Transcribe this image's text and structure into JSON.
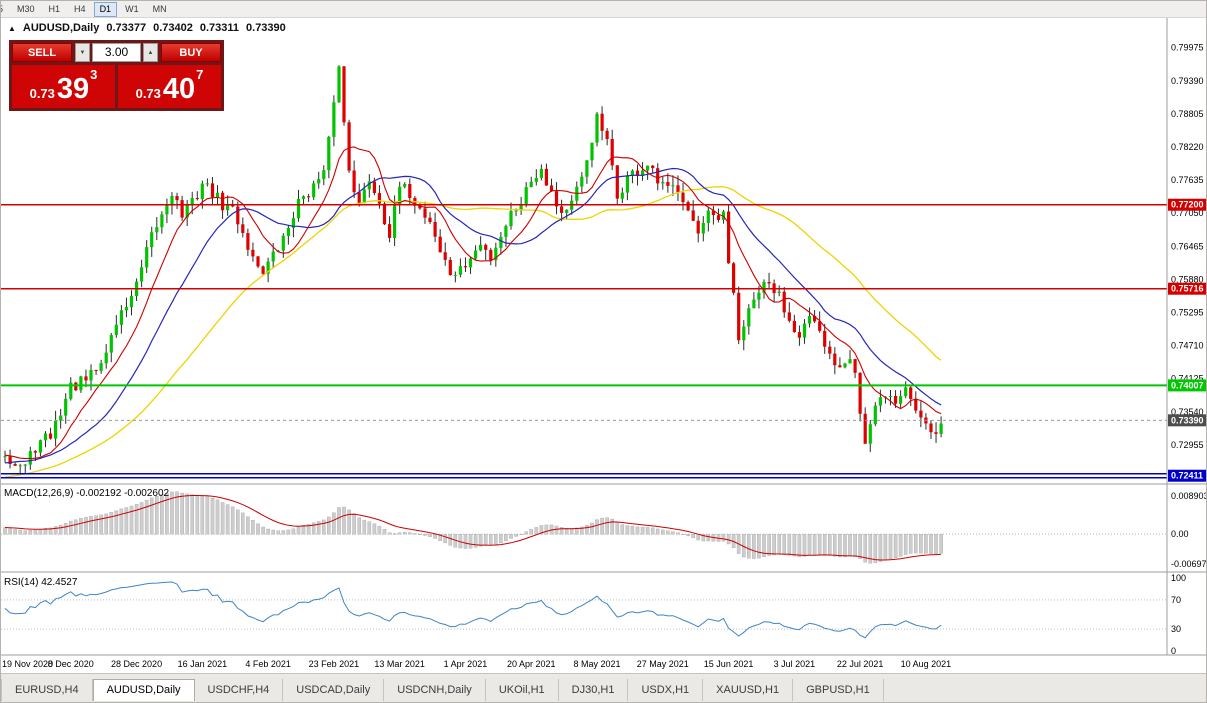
{
  "toolbar": {
    "timeframes": [
      {
        "label": "5",
        "clipped": true,
        "active": false
      },
      {
        "label": "M30",
        "active": false
      },
      {
        "label": "H1",
        "active": false
      },
      {
        "label": "H4",
        "active": false
      },
      {
        "label": "D1",
        "active": true
      },
      {
        "label": "W1",
        "active": false
      },
      {
        "label": "MN",
        "active": false
      }
    ]
  },
  "chart_header": {
    "collapse_icon": "▲",
    "symbol": "AUDUSD,Daily",
    "open": "0.73377",
    "high": "0.73402",
    "low": "0.73311",
    "close": "0.73390"
  },
  "trade_panel": {
    "sell_label": "SELL",
    "buy_label": "BUY",
    "volume": "3.00",
    "spinner_down": "▼",
    "spinner_up": "▲",
    "sell_price": {
      "prefix": "0.73",
      "big": "39",
      "sup": "3"
    },
    "buy_price": {
      "prefix": "0.73",
      "big": "40",
      "sup": "7"
    }
  },
  "tabs": {
    "active": "AUDUSD,Daily",
    "items": [
      "EURUSD,H4",
      "AUDUSD,Daily",
      "USDCHF,H4",
      "USDCAD,Daily",
      "USDCNH,Daily",
      "UKOil,H1",
      "DJ30,H1",
      "USDX,H1",
      "XAUUSD,H1",
      "GBPUSD,H1"
    ]
  },
  "chart_data": {
    "type": "candlestick",
    "symbol": "AUDUSD",
    "timeframe": "Daily",
    "price_axis": {
      "top": 0.805,
      "bottom": 0.723,
      "labels": [
        "0.79975",
        "0.79390",
        "0.78805",
        "0.78220",
        "0.77635",
        "0.77050",
        "0.76465",
        "0.75880",
        "0.75295",
        "0.74710",
        "0.74125",
        "0.73540",
        "0.72955"
      ]
    },
    "time_axis": {
      "tick_step": 13,
      "labels": [
        "19 Nov 2020",
        "8 Dec 2020",
        "28 Dec 2020",
        "16 Jan 2021",
        "4 Feb 2021",
        "23 Feb 2021",
        "13 Mar 2021",
        "1 Apr 2021",
        "20 Apr 2021",
        "8 May 2021",
        "27 May 2021",
        "15 Jun 2021",
        "3 Jul 2021",
        "22 Jul 2021",
        "10 Aug 2021"
      ]
    },
    "candles": {
      "count": 186,
      "seed": 42,
      "noise": 0.0012,
      "wick": 0.0018,
      "prehistory": {
        "days": 60,
        "slope": 0.00022
      },
      "close_anchors": [
        [
          0,
          0.7285
        ],
        [
          2,
          0.7262
        ],
        [
          4,
          0.7258
        ],
        [
          6,
          0.7292
        ],
        [
          9,
          0.7312
        ],
        [
          13,
          0.7398
        ],
        [
          16,
          0.7408
        ],
        [
          19,
          0.7438
        ],
        [
          22,
          0.7512
        ],
        [
          26,
          0.7576
        ],
        [
          29,
          0.7662
        ],
        [
          31,
          0.7702
        ],
        [
          33,
          0.7745
        ],
        [
          35,
          0.7702
        ],
        [
          37,
          0.7722
        ],
        [
          39,
          0.7758
        ],
        [
          41,
          0.7742
        ],
        [
          43,
          0.7718
        ],
        [
          45,
          0.7712
        ],
        [
          47,
          0.7672
        ],
        [
          49,
          0.7625
        ],
        [
          51,
          0.7605
        ],
        [
          53,
          0.7628
        ],
        [
          55,
          0.7658
        ],
        [
          57,
          0.7705
        ],
        [
          59,
          0.7738
        ],
        [
          61,
          0.7752
        ],
        [
          63,
          0.7772
        ],
        [
          64,
          0.783
        ],
        [
          65,
          0.7908
        ],
        [
          66,
          0.7962
        ],
        [
          67,
          0.7866
        ],
        [
          68,
          0.7788
        ],
        [
          70,
          0.7718
        ],
        [
          72,
          0.7766
        ],
        [
          74,
          0.7726
        ],
        [
          76,
          0.7668
        ],
        [
          78,
          0.775
        ],
        [
          80,
          0.774
        ],
        [
          82,
          0.7712
        ],
        [
          84,
          0.7692
        ],
        [
          86,
          0.7638
        ],
        [
          88,
          0.7598
        ],
        [
          90,
          0.7602
        ],
        [
          92,
          0.7625
        ],
        [
          94,
          0.7648
        ],
        [
          96,
          0.7628
        ],
        [
          98,
          0.7668
        ],
        [
          100,
          0.7705
        ],
        [
          102,
          0.7728
        ],
        [
          104,
          0.7765
        ],
        [
          106,
          0.7788
        ],
        [
          108,
          0.7742
        ],
        [
          110,
          0.7706
        ],
        [
          112,
          0.7722
        ],
        [
          114,
          0.7762
        ],
        [
          116,
          0.7838
        ],
        [
          117,
          0.7872
        ],
        [
          119,
          0.7828
        ],
        [
          121,
          0.7732
        ],
        [
          123,
          0.7768
        ],
        [
          125,
          0.7778
        ],
        [
          127,
          0.7788
        ],
        [
          129,
          0.7758
        ],
        [
          131,
          0.7745
        ],
        [
          133,
          0.7752
        ],
        [
          135,
          0.7718
        ],
        [
          137,
          0.7665
        ],
        [
          139,
          0.7698
        ],
        [
          141,
          0.769
        ],
        [
          142,
          0.77
        ],
        [
          143,
          0.7608
        ],
        [
          144,
          0.7562
        ],
        [
          145,
          0.7484
        ],
        [
          147,
          0.7528
        ],
        [
          149,
          0.7568
        ],
        [
          151,
          0.7578
        ],
        [
          153,
          0.7558
        ],
        [
          155,
          0.7518
        ],
        [
          157,
          0.7495
        ],
        [
          159,
          0.7518
        ],
        [
          161,
          0.7488
        ],
        [
          163,
          0.7452
        ],
        [
          165,
          0.7438
        ],
        [
          167,
          0.7458
        ],
        [
          168,
          0.7428
        ],
        [
          169,
          0.7352
        ],
        [
          170,
          0.7296
        ],
        [
          172,
          0.7358
        ],
        [
          174,
          0.7388
        ],
        [
          176,
          0.7368
        ],
        [
          178,
          0.7398
        ],
        [
          180,
          0.7358
        ],
        [
          182,
          0.7338
        ],
        [
          184,
          0.7315
        ],
        [
          185,
          0.7339
        ]
      ]
    },
    "style": {
      "up_color": "#00C400",
      "down_color": "#E00000",
      "wick_color": "#2a2a2a"
    },
    "moving_averages": [
      {
        "name": "slow",
        "window": 42,
        "color": "#EFD300",
        "width": 1.3
      },
      {
        "name": "medium",
        "window": 20,
        "color": "#2626B8",
        "width": 1.2
      },
      {
        "name": "fast",
        "window": 9,
        "color": "#CC0000",
        "width": 1.1
      }
    ],
    "hlines": [
      {
        "price": 0.772,
        "color": "#D40000",
        "style": "solid",
        "width": 1.5,
        "label": "0.77200"
      },
      {
        "price": 0.75716,
        "color": "#D40000",
        "style": "solid",
        "width": 1.5,
        "label": "0.75716"
      },
      {
        "price": 0.74007,
        "color": "#00C800",
        "style": "solid",
        "width": 2,
        "label": "0.74007"
      },
      {
        "price": 0.72411,
        "color": "#0000C8",
        "style": "double",
        "width": 1.5,
        "label": "0.72411"
      }
    ],
    "last_price": {
      "value": 0.7339,
      "label": "0.73390",
      "box_color": "#4d4d4d"
    },
    "indicators": {
      "macd": {
        "title": "MACD(12,26,9)",
        "values_text": "-0.002192 -0.002602",
        "fast": 12,
        "slow": 26,
        "signal": 9,
        "axis_labels": [
          "0.008903",
          "0.00",
          "-0.006971"
        ],
        "hist_fill": "#cdcdcd",
        "hist_stroke": "#ababab",
        "signal_color": "#CC0000"
      },
      "rsi": {
        "title": "RSI(14)",
        "value_text": "42.4527",
        "period": 14,
        "levels": [
          70,
          30
        ],
        "axis_labels": [
          "100",
          "70",
          "30",
          "0"
        ],
        "color": "#3D85C6"
      }
    }
  }
}
